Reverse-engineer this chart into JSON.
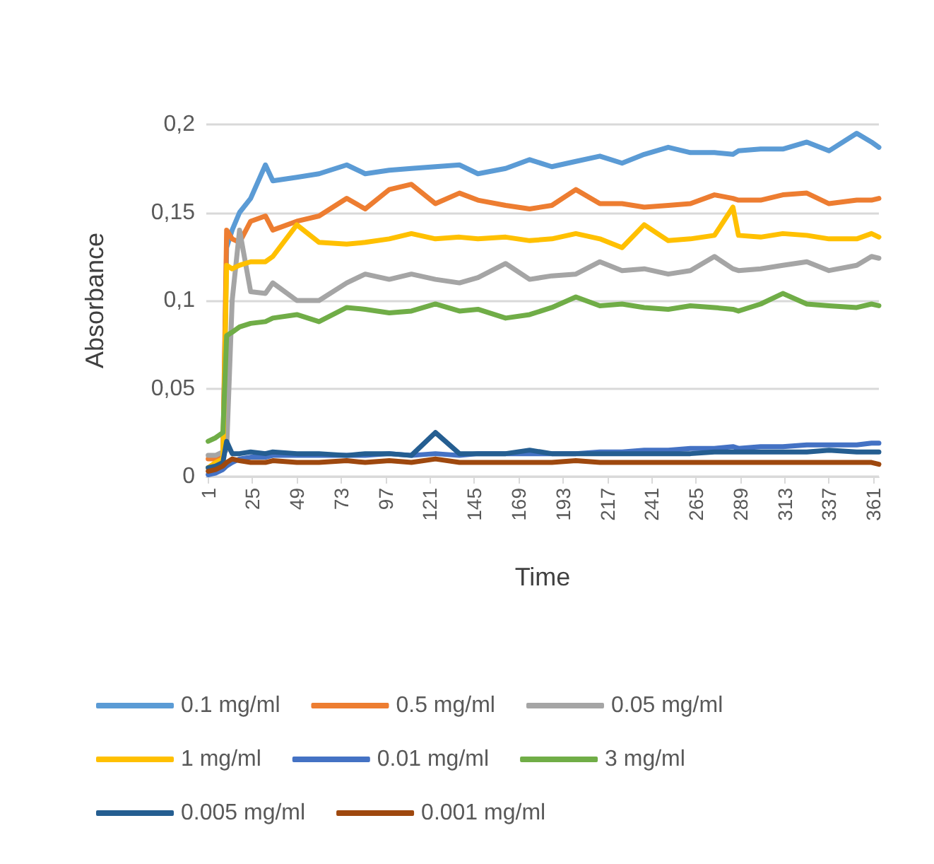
{
  "chart_data": {
    "type": "line",
    "xlabel": "Time",
    "ylabel": "Absorbance",
    "x": [
      1,
      5,
      9,
      11,
      14,
      18,
      24,
      32,
      36,
      49,
      61,
      76,
      86,
      99,
      111,
      124,
      137,
      147,
      162,
      175,
      187,
      200,
      213,
      225,
      237,
      250,
      262,
      275,
      285,
      288,
      300,
      312,
      325,
      337,
      352,
      360,
      364
    ],
    "series": [
      {
        "name": "0.1 mg/ml",
        "color": "#5b9bd5",
        "values": [
          0.005,
          0.005,
          0.008,
          0.13,
          0.14,
          0.15,
          0.158,
          0.177,
          0.168,
          0.17,
          0.172,
          0.177,
          0.172,
          0.174,
          0.175,
          0.176,
          0.177,
          0.172,
          0.175,
          0.18,
          0.176,
          0.179,
          0.182,
          0.178,
          0.183,
          0.187,
          0.184,
          0.184,
          0.183,
          0.185,
          0.186,
          0.186,
          0.19,
          0.185,
          0.195,
          0.19,
          0.187
        ]
      },
      {
        "name": "0.5 mg/ml",
        "color": "#ed7d31",
        "values": [
          0.01,
          0.01,
          0.012,
          0.14,
          0.135,
          0.133,
          0.145,
          0.148,
          0.14,
          0.145,
          0.148,
          0.158,
          0.152,
          0.163,
          0.166,
          0.155,
          0.161,
          0.157,
          0.154,
          0.152,
          0.154,
          0.163,
          0.155,
          0.155,
          0.153,
          0.154,
          0.155,
          0.16,
          0.158,
          0.157,
          0.157,
          0.16,
          0.161,
          0.155,
          0.157,
          0.157,
          0.158
        ]
      },
      {
        "name": "0.05 mg/ml",
        "color": "#a5a5a5",
        "values": [
          0.012,
          0.012,
          0.014,
          0.015,
          0.1,
          0.14,
          0.105,
          0.104,
          0.11,
          0.1,
          0.1,
          0.11,
          0.115,
          0.112,
          0.115,
          0.112,
          0.11,
          0.113,
          0.121,
          0.112,
          0.114,
          0.115,
          0.122,
          0.117,
          0.118,
          0.115,
          0.117,
          0.125,
          0.118,
          0.117,
          0.118,
          0.12,
          0.122,
          0.117,
          0.12,
          0.125,
          0.124
        ]
      },
      {
        "name": "1 mg/ml",
        "color": "#ffc000",
        "values": [
          0.005,
          0.008,
          0.01,
          0.12,
          0.118,
          0.12,
          0.122,
          0.122,
          0.125,
          0.143,
          0.133,
          0.132,
          0.133,
          0.135,
          0.138,
          0.135,
          0.136,
          0.135,
          0.136,
          0.134,
          0.135,
          0.138,
          0.135,
          0.13,
          0.143,
          0.134,
          0.135,
          0.137,
          0.153,
          0.137,
          0.136,
          0.138,
          0.137,
          0.135,
          0.135,
          0.138,
          0.136
        ]
      },
      {
        "name": "0.01 mg/ml",
        "color": "#4472c4",
        "values": [
          0.001,
          0.002,
          0.004,
          0.006,
          0.008,
          0.01,
          0.011,
          0.011,
          0.012,
          0.012,
          0.012,
          0.012,
          0.012,
          0.013,
          0.012,
          0.013,
          0.012,
          0.013,
          0.013,
          0.013,
          0.013,
          0.013,
          0.014,
          0.014,
          0.015,
          0.015,
          0.016,
          0.016,
          0.017,
          0.016,
          0.017,
          0.017,
          0.018,
          0.018,
          0.018,
          0.019,
          0.019
        ]
      },
      {
        "name": "3 mg/ml",
        "color": "#70ad47",
        "values": [
          0.02,
          0.022,
          0.025,
          0.08,
          0.082,
          0.085,
          0.087,
          0.088,
          0.09,
          0.092,
          0.088,
          0.096,
          0.095,
          0.093,
          0.094,
          0.098,
          0.094,
          0.095,
          0.09,
          0.092,
          0.096,
          0.102,
          0.097,
          0.098,
          0.096,
          0.095,
          0.097,
          0.096,
          0.095,
          0.094,
          0.098,
          0.104,
          0.098,
          0.097,
          0.096,
          0.098,
          0.097
        ]
      },
      {
        "name": "0.005 mg/ml",
        "color": "#255e91",
        "values": [
          0.005,
          0.006,
          0.008,
          0.02,
          0.013,
          0.013,
          0.014,
          0.013,
          0.014,
          0.013,
          0.013,
          0.012,
          0.013,
          0.013,
          0.012,
          0.025,
          0.013,
          0.013,
          0.013,
          0.015,
          0.013,
          0.013,
          0.013,
          0.013,
          0.013,
          0.013,
          0.013,
          0.014,
          0.014,
          0.014,
          0.014,
          0.014,
          0.014,
          0.015,
          0.014,
          0.014,
          0.014
        ]
      },
      {
        "name": "0.001 mg/ml",
        "color": "#9e480e",
        "values": [
          0.003,
          0.004,
          0.006,
          0.008,
          0.01,
          0.009,
          0.008,
          0.008,
          0.009,
          0.008,
          0.008,
          0.009,
          0.008,
          0.009,
          0.008,
          0.01,
          0.008,
          0.008,
          0.008,
          0.008,
          0.008,
          0.009,
          0.008,
          0.008,
          0.008,
          0.008,
          0.008,
          0.008,
          0.008,
          0.008,
          0.008,
          0.008,
          0.008,
          0.008,
          0.008,
          0.008,
          0.007
        ]
      }
    ],
    "xlim": [
      0,
      364
    ],
    "xticks": [
      1,
      25,
      49,
      73,
      97,
      121,
      145,
      169,
      193,
      217,
      241,
      265,
      289,
      313,
      337,
      361
    ],
    "ylim": [
      0,
      0.2
    ],
    "yticks": [
      {
        "value": 0,
        "label": "0"
      },
      {
        "value": 0.05,
        "label": "0,05"
      },
      {
        "value": 0.1,
        "label": "0,1"
      },
      {
        "value": 0.15,
        "label": "0,15"
      },
      {
        "value": 0.2,
        "label": "0,2"
      }
    ],
    "grid": "y",
    "legend": "bottom",
    "marker": "none",
    "line_style": "solid"
  }
}
